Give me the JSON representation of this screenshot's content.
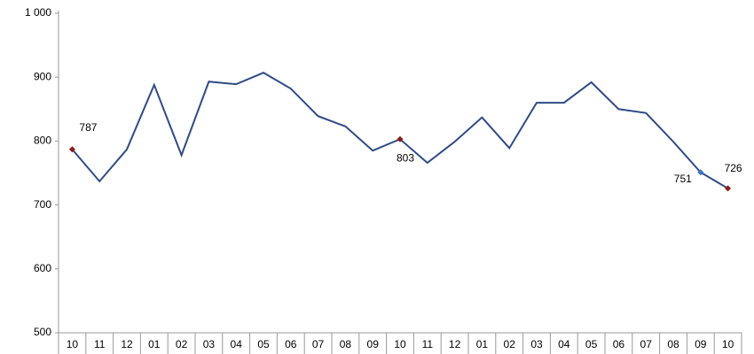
{
  "chart_data": {
    "type": "line",
    "categories": [
      "10",
      "11",
      "12",
      "01",
      "02",
      "03",
      "04",
      "05",
      "06",
      "07",
      "08",
      "09",
      "10",
      "11",
      "12",
      "01",
      "02",
      "03",
      "04",
      "05",
      "06",
      "07",
      "08",
      "09",
      "10"
    ],
    "series": [
      {
        "color": "#2f4b85",
        "values": [
          787,
          737,
          787,
          888,
          778,
          893,
          889,
          907,
          882,
          839,
          823,
          785,
          803,
          766,
          799,
          837,
          789,
          860,
          860,
          892,
          850,
          844,
          799,
          751,
          726
        ],
        "highlight_colors": [
          "#8b1a1a",
          null,
          null,
          null,
          null,
          null,
          null,
          null,
          null,
          null,
          null,
          null,
          "#8b1a1a",
          null,
          null,
          null,
          null,
          null,
          null,
          null,
          null,
          null,
          null,
          "#3a78c2",
          "#8b1a1a"
        ]
      }
    ],
    "ylim": [
      500,
      1000
    ],
    "yticks": [
      500,
      600,
      700,
      800,
      900,
      {
        "value": 1000,
        "label": "1 000"
      }
    ],
    "grid": false
  }
}
